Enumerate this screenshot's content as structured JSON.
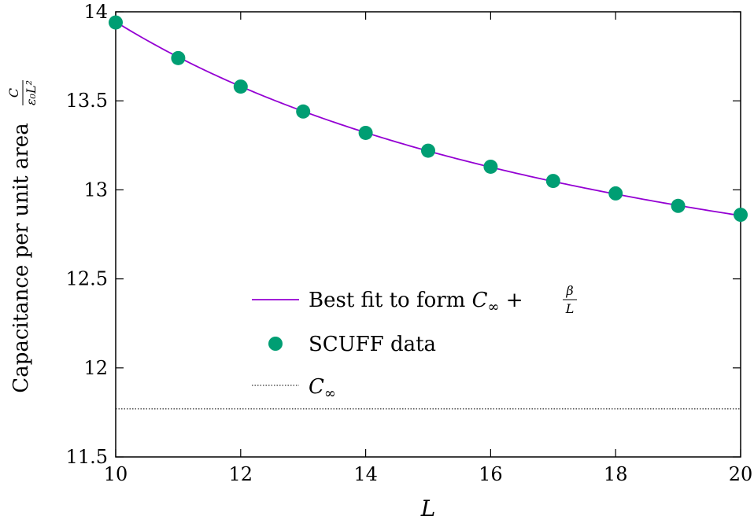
{
  "chart_data": {
    "type": "line",
    "xlabel": "L",
    "ylabel": {
      "text": "Capacitance per unit area",
      "fraction_numerator": "C",
      "fraction_denominator": "ε₀L²"
    },
    "xlim": [
      10,
      20
    ],
    "ylim": [
      11.5,
      14
    ],
    "x_ticks": [
      "10",
      "12",
      "14",
      "16",
      "18",
      "20"
    ],
    "y_ticks": [
      "11.5",
      "12",
      "12.5",
      "13",
      "13.5",
      "14"
    ],
    "grid": false,
    "legend_position": "center-left",
    "series": [
      {
        "name": "Best fit to form C∞ + β/L",
        "kind": "line",
        "color": "#9400d3",
        "x": [
          10,
          11,
          12,
          13,
          14,
          15,
          16,
          17,
          18,
          19,
          20
        ],
        "y": [
          13.94,
          13.75,
          13.58,
          13.44,
          13.32,
          13.22,
          13.13,
          13.05,
          12.98,
          12.91,
          12.85
        ]
      },
      {
        "name": "SCUFF data",
        "kind": "scatter",
        "color": "#009e73",
        "x": [
          10,
          11,
          12,
          13,
          14,
          15,
          16,
          17,
          18,
          19,
          20
        ],
        "y": [
          13.94,
          13.74,
          13.58,
          13.44,
          13.32,
          13.22,
          13.13,
          13.05,
          12.98,
          12.91,
          12.86
        ]
      },
      {
        "name": "C∞",
        "kind": "hline",
        "color": "#000000",
        "y": 11.77
      }
    ],
    "legend_labels": {
      "fit_prefix": "Best fit to form ",
      "fit_c": "C",
      "fit_sub": "∞",
      "fit_plus": " + ",
      "fit_beta": "β",
      "fit_L": "L",
      "scatter": "SCUFF data",
      "cinf_c": "C",
      "cinf_sub": "∞"
    }
  }
}
